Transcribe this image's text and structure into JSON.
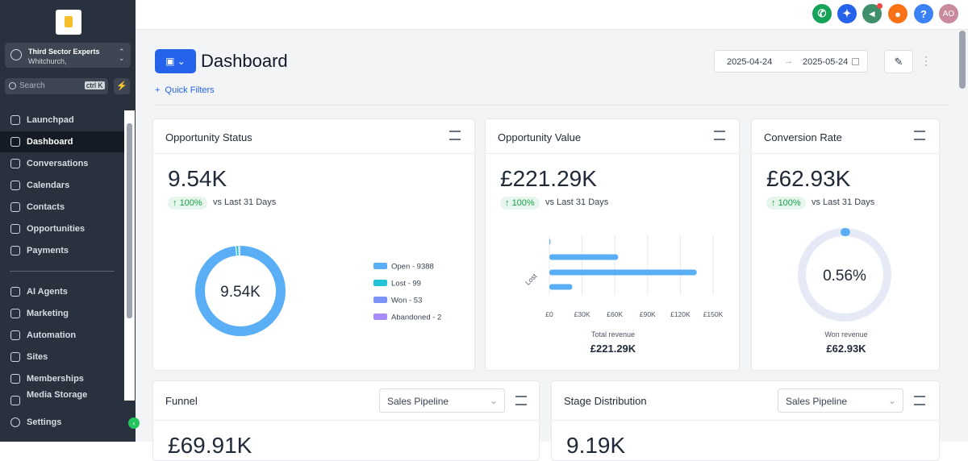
{
  "sidebar": {
    "account": {
      "name": "Third Sector Experts",
      "location": "Whitchurch,"
    },
    "search": {
      "placeholder": "Search",
      "shortcut": "ctrl K"
    },
    "nav": [
      "Launchpad",
      "Dashboard",
      "Conversations",
      "Calendars",
      "Contacts",
      "Opportunities",
      "Payments",
      "AI Agents",
      "Marketing",
      "Automation",
      "Sites",
      "Memberships",
      "Media Storage"
    ],
    "active_index": 1,
    "settings": "Settings"
  },
  "topbar": {
    "help": "?",
    "avatar": "AO"
  },
  "header": {
    "title": "Dashboard",
    "quick_filters": "Quick Filters",
    "date_from": "2025-04-24",
    "date_to": "2025-05-24"
  },
  "cards": {
    "status": {
      "title": "Opportunity Status",
      "value": "9.54K",
      "change": "100%",
      "comparison": "vs Last 31 Days",
      "chart": {
        "type": "donut",
        "center": "9.54K",
        "segments": [
          {
            "label": "Open - 9388",
            "value": 9388,
            "color": "#5aaef5"
          },
          {
            "label": "Lost - 99",
            "value": 99,
            "color": "#22c3d6"
          },
          {
            "label": "Won - 53",
            "value": 53,
            "color": "#7b93f5"
          },
          {
            "label": "Abandoned - 2",
            "value": 2,
            "color": "#a78bfa"
          }
        ]
      }
    },
    "value": {
      "title": "Opportunity Value",
      "value": "£221.29K",
      "change": "100%",
      "comparison": "vs Last 31 Days",
      "chart": {
        "type": "bar",
        "categories": [
          null,
          null,
          "Lost",
          null
        ],
        "values": [
          1000,
          63000,
          135000,
          21000
        ],
        "color": "#5aaef5",
        "xlim": [
          0,
          150000
        ],
        "xticks": [
          {
            "value": 0,
            "label": "£0"
          },
          {
            "value": 30000,
            "label": "£30K"
          },
          {
            "value": 60000,
            "label": "£60K"
          },
          {
            "value": 90000,
            "label": "£90K"
          },
          {
            "value": 120000,
            "label": "£120K"
          },
          {
            "value": 150000,
            "label": "£150K"
          }
        ],
        "grid": true
      },
      "footer_label": "Total revenue",
      "footer_value": "£221.29K"
    },
    "conversion": {
      "title": "Conversion Rate",
      "value": "£62.93K",
      "change": "100%",
      "comparison": "vs Last 31 Days",
      "chart": {
        "type": "gauge",
        "value": 0.56,
        "label": "0.56%",
        "color": "#5aaef5"
      },
      "footer_label": "Won revenue",
      "footer_value": "£62.93K"
    },
    "funnel": {
      "title": "Funnel",
      "select": "Sales Pipeline",
      "value": "£69.91K"
    },
    "stage": {
      "title": "Stage Distribution",
      "select": "Sales Pipeline",
      "value": "9.19K"
    }
  }
}
